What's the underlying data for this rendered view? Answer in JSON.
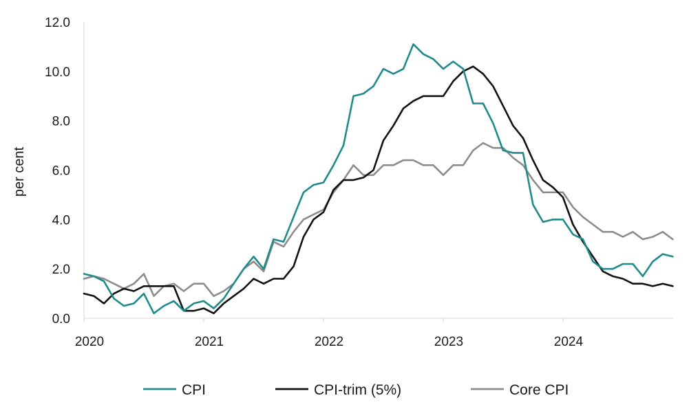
{
  "chart_data": {
    "type": "line",
    "ylabel": "per cent",
    "xlabel": "",
    "ylim": [
      0,
      12
    ],
    "yticks": [
      "0.0",
      "2.0",
      "4.0",
      "6.0",
      "8.0",
      "10.0",
      "12.0"
    ],
    "xlim": [
      2020,
      2024.92
    ],
    "xticks": [
      "2020",
      "2021",
      "2022",
      "2023",
      "2024"
    ],
    "grid": false,
    "legend_position": "bottom",
    "series": [
      {
        "name": "CPI",
        "color": "#1f8a8a",
        "values": [
          1.8,
          1.7,
          1.5,
          0.8,
          0.5,
          0.6,
          1.0,
          0.2,
          0.5,
          0.7,
          0.3,
          0.6,
          0.7,
          0.4,
          0.8,
          1.4,
          2.0,
          2.5,
          2.0,
          3.2,
          3.1,
          4.1,
          5.1,
          5.4,
          5.5,
          6.2,
          7.0,
          9.0,
          9.1,
          9.4,
          10.1,
          9.9,
          10.1,
          11.1,
          10.7,
          10.5,
          10.1,
          10.4,
          10.1,
          8.7,
          8.7,
          7.9,
          6.8,
          6.7,
          6.7,
          4.6,
          3.9,
          4.0,
          4.0,
          3.4,
          3.2,
          2.3,
          2.0,
          2.0,
          2.2,
          2.2,
          1.7,
          2.3,
          2.6,
          2.5
        ]
      },
      {
        "name": "CPI-trim (5%)",
        "color": "#111111",
        "values": [
          1.0,
          0.9,
          0.6,
          1.0,
          1.2,
          1.1,
          1.3,
          1.3,
          1.3,
          1.3,
          0.3,
          0.3,
          0.4,
          0.2,
          0.6,
          0.9,
          1.2,
          1.6,
          1.4,
          1.6,
          1.6,
          2.1,
          3.3,
          4.0,
          4.3,
          5.2,
          5.6,
          5.6,
          5.7,
          6.0,
          7.2,
          7.8,
          8.5,
          8.8,
          9.0,
          9.0,
          9.0,
          9.6,
          10.0,
          10.2,
          9.9,
          9.4,
          8.6,
          7.8,
          7.3,
          6.4,
          5.6,
          5.3,
          4.9,
          3.8,
          3.1,
          2.5,
          1.9,
          1.7,
          1.6,
          1.4,
          1.4,
          1.3,
          1.4,
          1.3
        ]
      },
      {
        "name": "Core CPI",
        "color": "#8c8c8c",
        "values": [
          1.6,
          1.7,
          1.6,
          1.4,
          1.2,
          1.4,
          1.8,
          0.9,
          1.3,
          1.4,
          1.1,
          1.4,
          1.4,
          0.9,
          1.1,
          1.4,
          2.0,
          2.3,
          1.9,
          3.1,
          2.9,
          3.5,
          4.0,
          4.2,
          4.4,
          5.1,
          5.6,
          6.2,
          5.8,
          5.8,
          6.2,
          6.2,
          6.4,
          6.4,
          6.2,
          6.2,
          5.8,
          6.2,
          6.2,
          6.8,
          7.1,
          6.9,
          6.9,
          6.5,
          6.2,
          5.6,
          5.1,
          5.1,
          5.1,
          4.5,
          4.1,
          3.8,
          3.5,
          3.5,
          3.3,
          3.5,
          3.2,
          3.3,
          3.5,
          3.2
        ]
      }
    ]
  }
}
